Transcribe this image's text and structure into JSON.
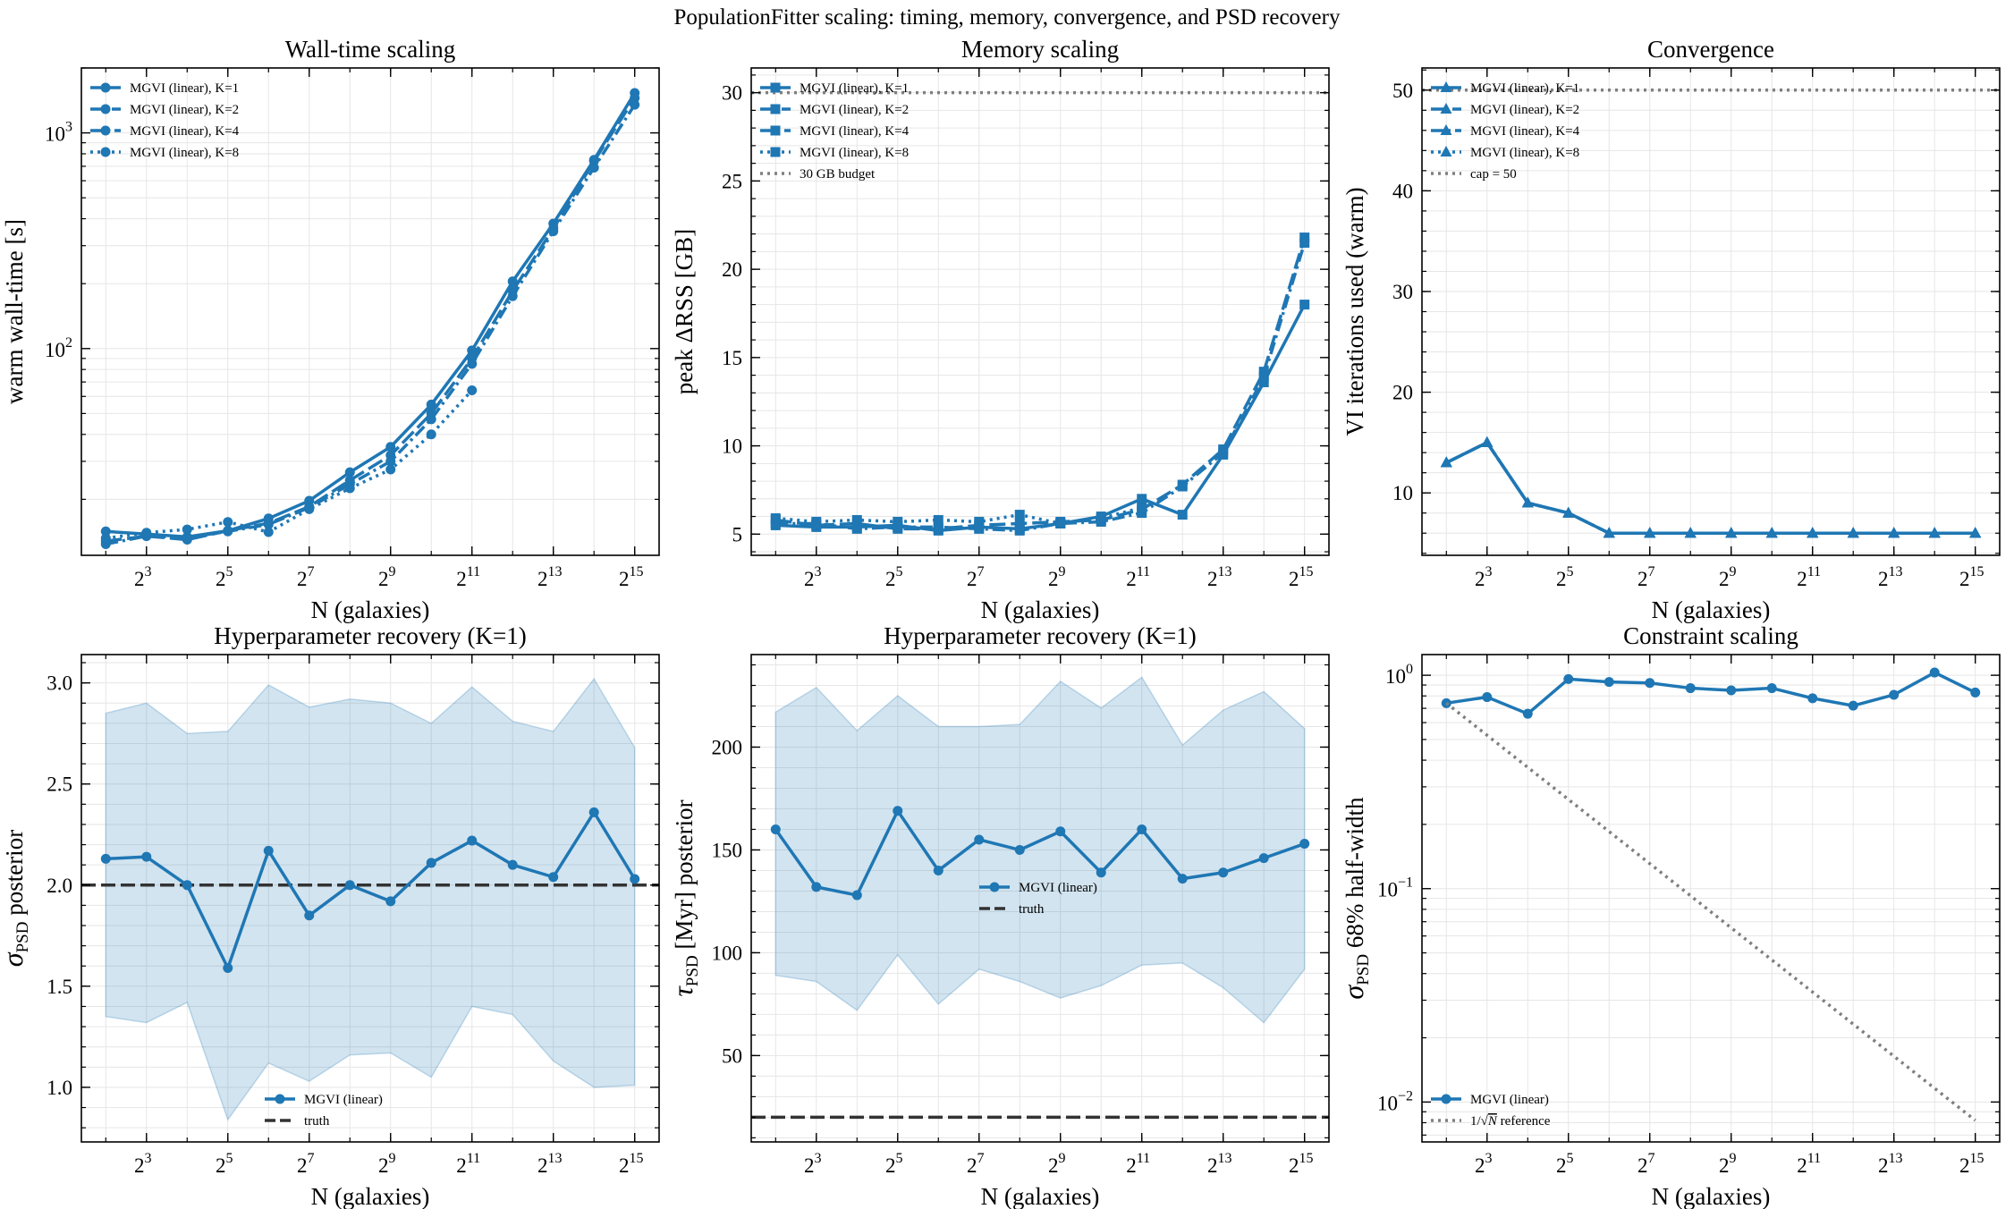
{
  "figure": {
    "suptitle": "PopulationFitter scaling: timing, memory, convergence, and PSD recovery"
  },
  "colors": {
    "series": "#1f77b4",
    "band": "#1f77b4",
    "truth": "#333333",
    "reference": "#7f7f7f",
    "grid": "#e6e6e6"
  },
  "chart_data": [
    {
      "id": "walltime",
      "type": "line",
      "title": "Wall-time scaling",
      "xlabel": "N (galaxies)",
      "ylabel": "warm wall-time [s]",
      "xscale": "log2",
      "yscale": "log10",
      "xlim_log2": [
        1.4,
        15.6
      ],
      "ylim": [
        11,
        2000
      ],
      "x_ticks": [
        "2^3",
        "2^5",
        "2^7",
        "2^9",
        "2^11",
        "2^13",
        "2^15"
      ],
      "y_ticks": [
        "10^2",
        "10^3"
      ],
      "grid": true,
      "legend_position": "upper left",
      "marker": "circle",
      "series": [
        {
          "name": "MGVI (linear), K=1",
          "dash": "solid",
          "x": [
            4,
            8,
            16,
            32,
            64,
            128,
            256,
            512,
            1024,
            2048,
            4096,
            8192,
            16384,
            32768
          ],
          "y": [
            14.2,
            13.8,
            13.4,
            14.3,
            16.3,
            19.7,
            26.7,
            35,
            55,
            98,
            205,
            380,
            750,
            1530
          ]
        },
        {
          "name": "MGVI (linear), K=2",
          "dash": "dashed",
          "x": [
            4,
            8,
            16,
            32,
            64,
            128,
            256,
            512,
            1024,
            2048,
            4096,
            8192,
            16384,
            32768
          ],
          "y": [
            12.8,
            13.5,
            13.0,
            14.3,
            15.5,
            18.5,
            24.5,
            32,
            50,
            90,
            185,
            360,
            740,
            1450
          ]
        },
        {
          "name": "MGVI (linear), K=4",
          "dash": "dashdot",
          "x": [
            4,
            8,
            16,
            32,
            64,
            128,
            256,
            512,
            1024,
            2048,
            4096,
            8192,
            16384,
            32768
          ],
          "y": [
            12.4,
            13.5,
            13.3,
            14.2,
            15.3,
            18.3,
            23.5,
            30,
            47,
            85,
            175,
            350,
            690,
            1350
          ]
        },
        {
          "name": "MGVI (linear), K=8",
          "dash": "dotted",
          "x": [
            4,
            8,
            16,
            32,
            64,
            128,
            256,
            512,
            1024,
            2048
          ],
          "y": [
            13.2,
            14.0,
            14.5,
            15.7,
            14.1,
            18.0,
            22.5,
            27.5,
            40,
            64
          ]
        }
      ]
    },
    {
      "id": "memory",
      "type": "line",
      "title": "Memory scaling",
      "xlabel": "N (galaxies)",
      "ylabel": "peak ΔRSS [GB]",
      "xscale": "log2",
      "yscale": "linear",
      "xlim_log2": [
        1.4,
        15.6
      ],
      "ylim": [
        3.8,
        31.4
      ],
      "x_ticks": [
        "2^3",
        "2^5",
        "2^7",
        "2^9",
        "2^11",
        "2^13",
        "2^15"
      ],
      "y_ticks": [
        5,
        10,
        15,
        20,
        25,
        30
      ],
      "grid": true,
      "legend_position": "upper left",
      "marker": "square",
      "series": [
        {
          "name": "MGVI (linear), K=1",
          "dash": "solid",
          "x": [
            4,
            8,
            16,
            32,
            64,
            128,
            256,
            512,
            1024,
            2048,
            4096,
            8192,
            16384,
            32768
          ],
          "y": [
            5.5,
            5.4,
            5.4,
            5.5,
            5.2,
            5.4,
            5.3,
            5.6,
            6.0,
            7.0,
            6.1,
            9.5,
            13.6,
            18.0
          ]
        },
        {
          "name": "MGVI (linear), K=2",
          "dash": "dashed",
          "x": [
            4,
            8,
            16,
            32,
            64,
            128,
            256,
            512,
            1024,
            2048,
            4096,
            8192,
            16384,
            32768
          ],
          "y": [
            5.8,
            5.5,
            5.6,
            5.3,
            5.3,
            5.5,
            5.6,
            5.7,
            5.8,
            6.4,
            7.8,
            9.8,
            14.2,
            21.8
          ]
        },
        {
          "name": "MGVI (linear), K=4",
          "dash": "dashdot",
          "x": [
            4,
            8,
            16,
            32,
            64,
            128,
            256,
            512,
            1024,
            2048,
            4096,
            8192,
            16384,
            32768
          ],
          "y": [
            5.6,
            5.6,
            5.3,
            5.4,
            5.4,
            5.3,
            5.2,
            5.6,
            5.7,
            6.2,
            7.7,
            9.6,
            13.9,
            21.5
          ]
        },
        {
          "name": "MGVI (linear), K=8",
          "dash": "dotted",
          "x": [
            4,
            8,
            16,
            32,
            64,
            128,
            256,
            512,
            1024,
            2048
          ],
          "y": [
            5.9,
            5.7,
            5.8,
            5.7,
            5.8,
            5.7,
            6.1,
            5.6,
            5.9,
            6.5
          ]
        }
      ],
      "hlines": [
        {
          "name": "30 GB budget",
          "y": 30,
          "style": "dotted",
          "color": "#7f7f7f"
        }
      ]
    },
    {
      "id": "convergence",
      "type": "line",
      "title": "Convergence",
      "xlabel": "N (galaxies)",
      "ylabel": "VI iterations used (warm)",
      "xscale": "log2",
      "yscale": "linear",
      "xlim_log2": [
        1.4,
        15.6
      ],
      "ylim": [
        3.8,
        52.2
      ],
      "x_ticks": [
        "2^3",
        "2^5",
        "2^7",
        "2^9",
        "2^11",
        "2^13",
        "2^15"
      ],
      "y_ticks": [
        10,
        20,
        30,
        40,
        50
      ],
      "grid": true,
      "legend_position": "upper left",
      "marker": "triangle",
      "series": [
        {
          "name": "MGVI (linear), K=1",
          "dash": "solid",
          "x": [
            4,
            8,
            16,
            32,
            64,
            128,
            256,
            512,
            1024,
            2048,
            4096,
            8192,
            16384,
            32768
          ],
          "y": [
            13,
            15,
            9,
            8,
            6,
            6,
            6,
            6,
            6,
            6,
            6,
            6,
            6,
            6
          ]
        },
        {
          "name": "MGVI (linear), K=2",
          "dash": "dashed",
          "x": [
            4,
            8,
            16,
            32,
            64,
            128,
            256,
            512,
            1024,
            2048,
            4096,
            8192,
            16384,
            32768
          ],
          "y": [
            13,
            15,
            9,
            8,
            6,
            6,
            6,
            6,
            6,
            6,
            6,
            6,
            6,
            6
          ]
        },
        {
          "name": "MGVI (linear), K=4",
          "dash": "dashdot",
          "x": [
            4,
            8,
            16,
            32,
            64,
            128,
            256,
            512,
            1024,
            2048,
            4096,
            8192,
            16384,
            32768
          ],
          "y": [
            13,
            15,
            9,
            8,
            6,
            6,
            6,
            6,
            6,
            6,
            6,
            6,
            6,
            6
          ]
        },
        {
          "name": "MGVI (linear), K=8",
          "dash": "dotted",
          "x": [
            4,
            8,
            16,
            32,
            64,
            128,
            256,
            512,
            1024,
            2048,
            4096,
            8192,
            16384,
            32768
          ],
          "y": [
            13,
            15,
            9,
            8,
            6,
            6,
            6,
            6,
            6,
            6,
            6,
            6,
            6,
            6
          ]
        }
      ],
      "hlines": [
        {
          "name": "cap = 50",
          "y": 50,
          "style": "dotted",
          "color": "#7f7f7f"
        }
      ]
    },
    {
      "id": "sigma",
      "type": "line",
      "title": "Hyperparameter recovery (K=1)",
      "xlabel": "N (galaxies)",
      "ylabel": "σ_PSD posterior",
      "xscale": "log2",
      "yscale": "linear",
      "xlim_log2": [
        1.4,
        15.6
      ],
      "ylim": [
        0.73,
        3.14
      ],
      "x_ticks": [
        "2^3",
        "2^5",
        "2^7",
        "2^9",
        "2^11",
        "2^13",
        "2^15"
      ],
      "y_ticks": [
        1.0,
        1.5,
        2.0,
        2.5,
        3.0
      ],
      "grid": true,
      "legend_position": "lower center",
      "marker": "circle",
      "series": [
        {
          "name": "MGVI (linear)",
          "dash": "solid",
          "x": [
            4,
            8,
            16,
            32,
            64,
            128,
            256,
            512,
            1024,
            2048,
            4096,
            8192,
            16384,
            32768
          ],
          "y": [
            2.13,
            2.14,
            2.0,
            1.59,
            2.17,
            1.85,
            2.0,
            1.92,
            2.11,
            2.22,
            2.1,
            2.04,
            2.36,
            2.03
          ],
          "band_upper": [
            2.85,
            2.9,
            2.75,
            2.76,
            2.99,
            2.88,
            2.92,
            2.9,
            2.8,
            2.98,
            2.81,
            2.76,
            3.02,
            2.68
          ],
          "band_lower": [
            1.35,
            1.32,
            1.42,
            0.84,
            1.12,
            1.03,
            1.16,
            1.17,
            1.05,
            1.4,
            1.36,
            1.13,
            1.0,
            1.01
          ]
        }
      ],
      "hlines": [
        {
          "name": "truth",
          "y": 2.0,
          "style": "dashed",
          "color": "#333333"
        }
      ]
    },
    {
      "id": "tau",
      "type": "line",
      "title": "Hyperparameter recovery (K=1)",
      "xlabel": "N (galaxies)",
      "ylabel": "τ_PSD [Myr] posterior",
      "xscale": "log2",
      "yscale": "linear",
      "xlim_log2": [
        1.4,
        15.6
      ],
      "ylim": [
        8,
        245
      ],
      "x_ticks": [
        "2^3",
        "2^5",
        "2^7",
        "2^9",
        "2^11",
        "2^13",
        "2^15"
      ],
      "y_ticks": [
        50,
        100,
        150,
        200
      ],
      "grid": true,
      "legend_position": "center",
      "marker": "circle",
      "series": [
        {
          "name": "MGVI (linear)",
          "dash": "solid",
          "x": [
            4,
            8,
            16,
            32,
            64,
            128,
            256,
            512,
            1024,
            2048,
            4096,
            8192,
            16384,
            32768
          ],
          "y": [
            160,
            132,
            128,
            169,
            140,
            155,
            150,
            159,
            139,
            160,
            136,
            139,
            146,
            153
          ],
          "band_upper": [
            217,
            229,
            208,
            225,
            210,
            210,
            211,
            232,
            219,
            234,
            201,
            218,
            227,
            209
          ],
          "band_lower": [
            89,
            86,
            72,
            99,
            75,
            92,
            86,
            78,
            84,
            94,
            95,
            83,
            66,
            92
          ]
        }
      ],
      "hlines": [
        {
          "name": "truth",
          "y": 20,
          "style": "dashed",
          "color": "#333333"
        }
      ]
    },
    {
      "id": "constraint",
      "type": "line",
      "title": "Constraint scaling",
      "xlabel": "N (galaxies)",
      "ylabel": "σ_PSD 68% half-width",
      "xscale": "log2",
      "yscale": "log10",
      "xlim_log2": [
        1.4,
        15.6
      ],
      "ylim": [
        0.0065,
        1.25
      ],
      "x_ticks": [
        "2^3",
        "2^5",
        "2^7",
        "2^9",
        "2^11",
        "2^13",
        "2^15"
      ],
      "y_ticks": [
        "10^-2",
        "10^-1",
        "10^0"
      ],
      "grid": true,
      "legend_position": "lower left",
      "marker": "circle",
      "series": [
        {
          "name": "MGVI (linear)",
          "dash": "solid",
          "x": [
            4,
            8,
            16,
            32,
            64,
            128,
            256,
            512,
            1024,
            2048,
            4096,
            8192,
            16384,
            32768
          ],
          "y": [
            0.74,
            0.79,
            0.66,
            0.96,
            0.93,
            0.92,
            0.87,
            0.85,
            0.87,
            0.78,
            0.72,
            0.81,
            1.03,
            0.83
          ]
        },
        {
          "name": "1/√N reference",
          "dash": "dotted",
          "color": "#7f7f7f",
          "marker": "none",
          "x": [
            4,
            32768
          ],
          "y": [
            0.74,
            0.0082
          ]
        }
      ]
    }
  ]
}
